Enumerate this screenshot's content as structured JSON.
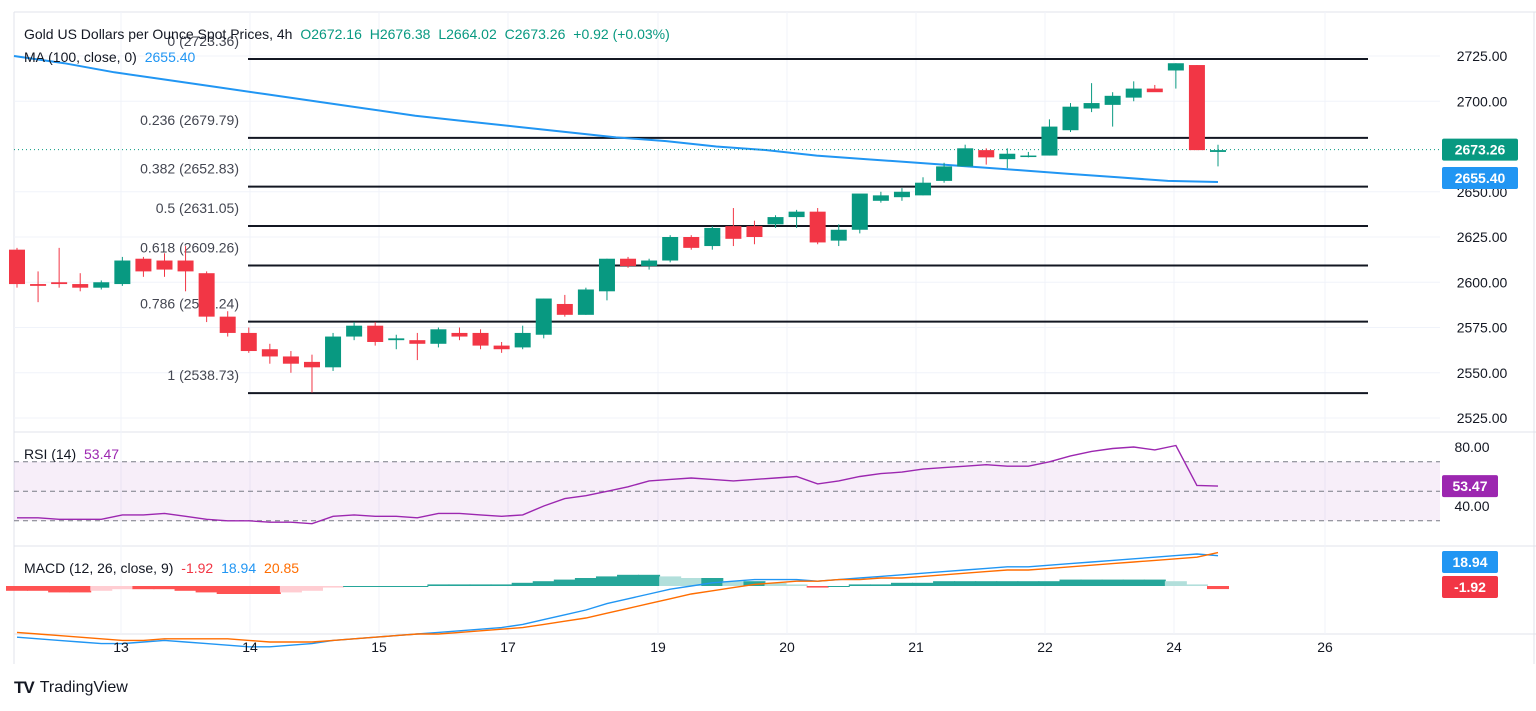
{
  "header": {
    "symbol": "Gold US Dollars per Ounce Spot Prices, 4h",
    "open": "O2672.16",
    "high": "H2676.38",
    "low": "L2664.02",
    "close": "C2673.26",
    "change": "+0.92 (+0.03%)",
    "ma_label": "MA (100, close, 0)",
    "ma_value": "2655.40"
  },
  "rsi_header": {
    "label": "RSI (14)",
    "value": "53.47"
  },
  "macd_header": {
    "label": "MACD (12, 26, close, 9)",
    "hist": "-1.92",
    "macd": "18.94",
    "signal": "20.85"
  },
  "branding": {
    "logo_text": "TradingView"
  },
  "colors": {
    "up": "#089981",
    "down": "#f23645",
    "ma": "#2196f3",
    "rsi": "#9c27b0",
    "signal": "#ff6d00",
    "fib_line": "#131722"
  },
  "chart_data": [
    {
      "type": "candlestick",
      "x_ticks": [
        "13",
        "14",
        "15",
        "17",
        "19",
        "20",
        "21",
        "22",
        "24",
        "26"
      ],
      "y_ticks": [
        "2525.00",
        "2550.00",
        "2575.00",
        "2600.00",
        "2625.00",
        "2650.00",
        "2700.00",
        "2725.00"
      ],
      "ylim": [
        2518,
        2738
      ],
      "price_label": "2673.26",
      "ma_label": "2655.40",
      "fib_levels": [
        {
          "label": "0 (2723.36)",
          "value": 2723.36
        },
        {
          "label": "0.236 (2679.79)",
          "value": 2679.79
        },
        {
          "label": "0.382 (2652.83)",
          "value": 2652.83
        },
        {
          "label": "0.5 (2631.05)",
          "value": 2631.05
        },
        {
          "label": "0.618 (2609.26)",
          "value": 2609.26
        },
        {
          "label": "0.786 (2578.24)",
          "value": 2578.24
        },
        {
          "label": "1 (2538.73)",
          "value": 2538.73
        }
      ],
      "candles": [
        [
          2618,
          2619,
          2597,
          2599
        ],
        [
          2599,
          2606,
          2589,
          2598
        ],
        [
          2600,
          2619,
          2597,
          2599
        ],
        [
          2599,
          2605,
          2595,
          2597
        ],
        [
          2597,
          2601,
          2596,
          2600
        ],
        [
          2599,
          2614,
          2598,
          2612
        ],
        [
          2613,
          2614,
          2603,
          2606
        ],
        [
          2612,
          2616,
          2603,
          2607
        ],
        [
          2612,
          2620,
          2595,
          2606
        ],
        [
          2605,
          2606,
          2578,
          2581
        ],
        [
          2581,
          2584,
          2570,
          2572
        ],
        [
          2572,
          2575,
          2561,
          2562
        ],
        [
          2563,
          2566,
          2555,
          2559
        ],
        [
          2559,
          2562,
          2550,
          2555
        ],
        [
          2556,
          2560,
          2539,
          2553
        ],
        [
          2553,
          2572,
          2551,
          2570
        ],
        [
          2570,
          2578,
          2568,
          2576
        ],
        [
          2576,
          2578,
          2565,
          2567
        ],
        [
          2568,
          2571,
          2563,
          2569
        ],
        [
          2568,
          2572,
          2557,
          2566
        ],
        [
          2566,
          2575,
          2564,
          2574
        ],
        [
          2572,
          2575,
          2568,
          2570
        ],
        [
          2572,
          2574,
          2563,
          2565
        ],
        [
          2565,
          2567,
          2561,
          2563
        ],
        [
          2564,
          2576,
          2563,
          2572
        ],
        [
          2571,
          2591,
          2569,
          2591
        ],
        [
          2588,
          2593,
          2581,
          2582
        ],
        [
          2582,
          2597,
          2582,
          2596
        ],
        [
          2595,
          2613,
          2590,
          2613
        ],
        [
          2613,
          2614,
          2608,
          2609
        ],
        [
          2609,
          2613,
          2607,
          2612
        ],
        [
          2612,
          2626,
          2611,
          2625
        ],
        [
          2625,
          2626,
          2618,
          2619
        ],
        [
          2620,
          2631,
          2618,
          2630
        ],
        [
          2631,
          2641,
          2620,
          2624
        ],
        [
          2631,
          2634,
          2621,
          2625
        ],
        [
          2632,
          2637,
          2630,
          2636
        ],
        [
          2636,
          2640,
          2630,
          2639
        ],
        [
          2639,
          2641,
          2621,
          2622
        ],
        [
          2623,
          2632,
          2620,
          2629
        ],
        [
          2629,
          2648,
          2627,
          2649
        ],
        [
          2645,
          2650,
          2644,
          2648
        ],
        [
          2647,
          2652,
          2645,
          2650
        ],
        [
          2648,
          2658,
          2648,
          2655
        ],
        [
          2656,
          2666,
          2655,
          2664
        ],
        [
          2664,
          2676,
          2664,
          2674
        ],
        [
          2673,
          2674,
          2665,
          2669
        ],
        [
          2668,
          2674,
          2663,
          2671
        ],
        [
          2670,
          2672,
          2669,
          2670
        ],
        [
          2670,
          2690,
          2670,
          2686
        ],
        [
          2684,
          2699,
          2683,
          2697
        ],
        [
          2696,
          2710,
          2694,
          2699
        ],
        [
          2698,
          2705,
          2686,
          2703
        ],
        [
          2702,
          2711,
          2700,
          2707
        ],
        [
          2707,
          2709,
          2706,
          2705
        ],
        [
          2717,
          2721,
          2707,
          2721
        ],
        [
          2720,
          2720,
          2673,
          2673
        ],
        [
          2672,
          2676,
          2664,
          2673
        ]
      ],
      "ma": [
        2725,
        2721,
        2716,
        2712,
        2708,
        2704,
        2700,
        2696,
        2692,
        2689,
        2686,
        2683,
        2680,
        2678,
        2675,
        2673,
        2670,
        2668,
        2666,
        2664,
        2662,
        2660,
        2658,
        2656,
        2655.4
      ]
    },
    {
      "type": "line",
      "name": "RSI (14)",
      "y_ticks": [
        "80.00",
        "40.00"
      ],
      "ylim": [
        26,
        84
      ],
      "levels": [
        70,
        50,
        30
      ],
      "value_label": "53.47",
      "values": [
        32,
        32,
        31,
        31,
        31,
        34,
        34,
        35,
        33,
        31,
        30,
        30,
        29,
        29,
        28,
        33,
        34,
        33,
        33,
        32,
        35,
        35,
        34,
        33,
        34,
        40,
        45,
        47,
        50,
        53,
        57,
        58,
        59,
        58,
        57,
        58,
        59,
        60,
        55,
        57,
        60,
        62,
        63,
        65,
        66,
        67,
        68,
        67,
        67,
        70,
        74,
        77,
        79,
        80,
        78,
        81,
        54,
        53.47
      ]
    },
    {
      "type": "bar",
      "name": "MACD (12, 26, close, 9)",
      "ylim": [
        -40,
        25
      ],
      "hist_label": "-1.92",
      "macd_label": "18.94",
      "hist": [
        -3,
        -3,
        -4,
        -4,
        -3,
        -2,
        -2,
        -2,
        -3,
        -4,
        -5,
        -5,
        -5,
        -4,
        -3,
        -1,
        0,
        0,
        0,
        0,
        1,
        1,
        1,
        1,
        2,
        3,
        4,
        5,
        6,
        7,
        7,
        6,
        5,
        5,
        3,
        3,
        2,
        1,
        -1,
        0,
        1,
        1,
        2,
        2,
        3,
        3,
        3,
        3,
        3,
        3,
        4,
        4,
        4,
        4,
        4,
        3,
        1,
        -1.92
      ],
      "macd": [
        -32,
        -33,
        -34,
        -35,
        -36,
        -36,
        -35,
        -34,
        -35,
        -36,
        -37,
        -38,
        -38,
        -37,
        -36,
        -34,
        -33,
        -32,
        -31,
        -30,
        -29,
        -28,
        -27,
        -26,
        -24,
        -21,
        -18,
        -15,
        -11,
        -8,
        -5,
        -2,
        0,
        2,
        3,
        4,
        4,
        4,
        3,
        4,
        5,
        6,
        7,
        8,
        9,
        10,
        11,
        12,
        12,
        13,
        14,
        15,
        16,
        17,
        18,
        19,
        20,
        18.94
      ],
      "signal": [
        -29,
        -30,
        -31,
        -32,
        -33,
        -34,
        -34,
        -33,
        -33,
        -33,
        -33,
        -34,
        -35,
        -35,
        -35,
        -34,
        -33,
        -32,
        -31,
        -30,
        -30,
        -29,
        -28,
        -27,
        -26,
        -24,
        -22,
        -20,
        -17,
        -14,
        -11,
        -8,
        -5,
        -3,
        -1,
        1,
        2,
        3,
        3,
        4,
        4,
        5,
        5,
        6,
        7,
        8,
        9,
        10,
        10,
        11,
        12,
        13,
        14,
        15,
        16,
        17,
        18,
        20.85
      ]
    }
  ]
}
